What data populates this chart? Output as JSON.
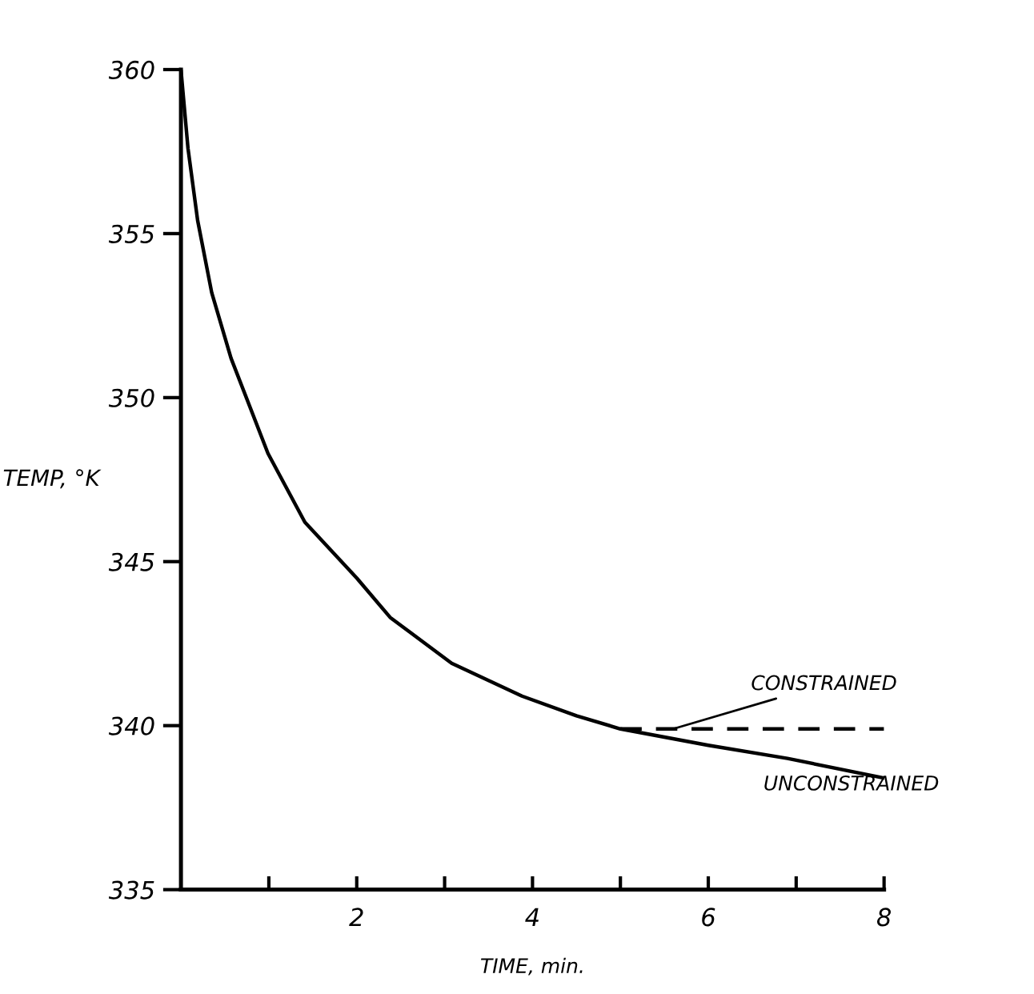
{
  "chart_data": {
    "type": "line",
    "xlabel": "TIME, min.",
    "ylabel": "TEMP, °K",
    "xlim": [
      0,
      8
    ],
    "ylim": [
      335,
      360
    ],
    "xticks": [
      {
        "value": 1,
        "label": null
      },
      2,
      {
        "value": 3,
        "label": null
      },
      4,
      {
        "value": 5,
        "label": null
      },
      6,
      {
        "value": 7,
        "label": null
      },
      8
    ],
    "yticks": [
      335,
      340,
      345,
      350,
      355,
      360
    ],
    "grid": false,
    "legend": false,
    "marker": "none",
    "series": [
      {
        "name": "CONSTRAINED",
        "color": "#000000",
        "line_style": "dashed",
        "x": [
          5.0,
          8.0
        ],
        "values": [
          339.9,
          339.9
        ]
      },
      {
        "name": "UNCONSTRAINED",
        "color": "#000000",
        "line_style": "solid",
        "x": [
          0,
          0.08,
          0.19,
          0.35,
          0.57,
          0.99,
          1.41,
          2.0,
          2.38,
          3.08,
          3.88,
          4.5,
          5.0,
          6.0,
          6.9,
          8.0
        ],
        "values": [
          360,
          357.6,
          355.4,
          353.2,
          351.2,
          348.3,
          346.2,
          344.5,
          343.3,
          341.9,
          340.9,
          340.3,
          339.9,
          339.4,
          339.0,
          338.4
        ]
      }
    ]
  }
}
